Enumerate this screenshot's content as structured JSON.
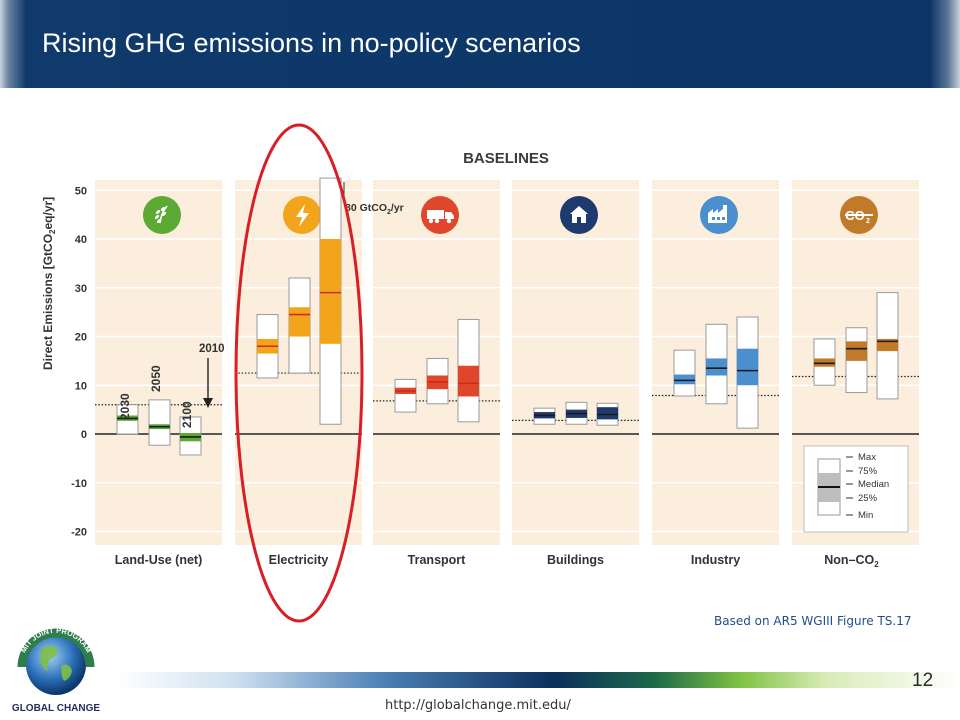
{
  "slide": {
    "title": "Rising GHG emissions in no-policy scenarios",
    "caption": "Based on AR5 WGIII Figure TS.17",
    "page_number": "12",
    "url": "http://globalchange.mit.edu/",
    "logo_text": {
      "top": "MIT JOINT PROGRAM",
      "bottom": "GLOBAL CHANGE"
    }
  },
  "colors": {
    "title_bar": "#0c3566",
    "panel_bg": "#fbeedd",
    "highlight_ring": "#d91f26"
  },
  "chart_data": {
    "type": "box",
    "title": "BASELINES",
    "ylabel": "Direct Emissions [GtCO2eq/yr]",
    "ylim": [
      -22,
      52
    ],
    "yticks": [
      50,
      40,
      30,
      20,
      10,
      0,
      -10,
      -20
    ],
    "year_labels": [
      "2030",
      "2050",
      "2100"
    ],
    "reference_label": "2010",
    "clipped_note": "80 GtCO2/yr",
    "legend": [
      "Max",
      "75%",
      "Median",
      "25%",
      "Min"
    ],
    "sectors": [
      {
        "name": "Land-Use (net)",
        "icon": "leaf-icon",
        "color": "#5ca934",
        "ref_2010": 6,
        "boxes": [
          {
            "year": "2030",
            "min": 0,
            "q1": 2.7,
            "median": 3.2,
            "q3": 3.8,
            "max": 6
          },
          {
            "year": "2050",
            "min": -2.3,
            "q1": 1,
            "median": 1.5,
            "q3": 2,
            "max": 7
          },
          {
            "year": "2100",
            "min": -4.3,
            "q1": -1.5,
            "median": -0.6,
            "q3": 0.2,
            "max": 3.5
          }
        ]
      },
      {
        "name": "Electricity",
        "icon": "lightning-icon",
        "color": "#f2a51a",
        "ref_2010": 12.5,
        "boxes": [
          {
            "year": "2030",
            "min": 11.5,
            "q1": 16.5,
            "median": 18,
            "q3": 19.5,
            "max": 24.5
          },
          {
            "year": "2050",
            "min": 12.5,
            "q1": 20,
            "median": 24.5,
            "q3": 26,
            "max": 32
          },
          {
            "year": "2100",
            "min": 2,
            "q1": 18.5,
            "median": 29,
            "q3": 40,
            "max": 80
          }
        ]
      },
      {
        "name": "Transport",
        "icon": "truck-icon",
        "color": "#e0472a",
        "ref_2010": 6.8,
        "boxes": [
          {
            "year": "2030",
            "min": 4.5,
            "q1": 8.2,
            "median": 8.8,
            "q3": 9.5,
            "max": 11.2
          },
          {
            "year": "2050",
            "min": 6.2,
            "q1": 9.2,
            "median": 10.7,
            "q3": 12,
            "max": 15.5
          },
          {
            "year": "2100",
            "min": 2.5,
            "q1": 7.7,
            "median": 10.4,
            "q3": 14,
            "max": 23.5
          }
        ]
      },
      {
        "name": "Buildings",
        "icon": "house-icon",
        "color": "#1e3a6e",
        "ref_2010": 2.8,
        "boxes": [
          {
            "year": "2030",
            "min": 2,
            "q1": 3.2,
            "median": 3.8,
            "q3": 4.5,
            "max": 5.3
          },
          {
            "year": "2050",
            "min": 2,
            "q1": 3.3,
            "median": 4.2,
            "q3": 5,
            "max": 6.5
          },
          {
            "year": "2100",
            "min": 1.8,
            "q1": 3,
            "median": 4,
            "q3": 5.5,
            "max": 6.3
          }
        ]
      },
      {
        "name": "Industry",
        "icon": "factory-icon",
        "color": "#4b8fcf",
        "ref_2010": 7.9,
        "boxes": [
          {
            "year": "2030",
            "min": 7.8,
            "q1": 10.2,
            "median": 11,
            "q3": 12.2,
            "max": 17.2
          },
          {
            "year": "2050",
            "min": 6.2,
            "q1": 12,
            "median": 13.5,
            "q3": 15.5,
            "max": 22.5
          },
          {
            "year": "2100",
            "min": 1.2,
            "q1": 10,
            "median": 13,
            "q3": 17.5,
            "max": 24
          }
        ]
      },
      {
        "name": "Non–CO2",
        "icon": "co2-icon",
        "color": "#c17a2a",
        "ref_2010": 11.8,
        "boxes": [
          {
            "year": "2030",
            "min": 10,
            "q1": 13.8,
            "median": 14.5,
            "q3": 15.5,
            "max": 19.5
          },
          {
            "year": "2050",
            "min": 8.5,
            "q1": 15,
            "median": 17.5,
            "q3": 19,
            "max": 21.8
          },
          {
            "year": "2100",
            "min": 7.2,
            "q1": 17,
            "median": 19,
            "q3": 19.5,
            "max": 29
          }
        ]
      }
    ]
  }
}
